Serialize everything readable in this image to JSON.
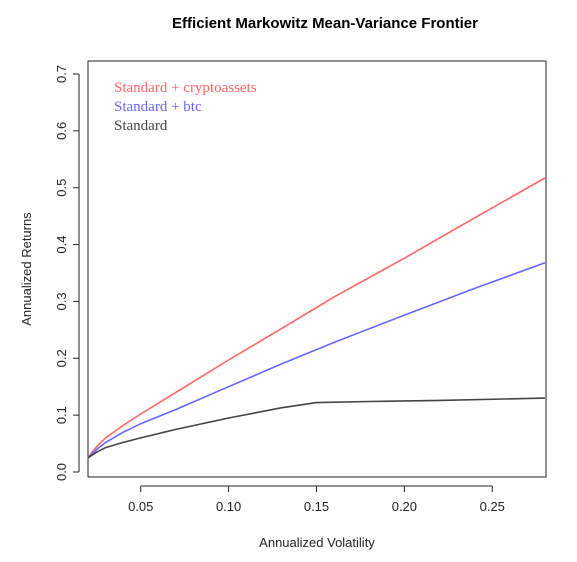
{
  "chart_data": {
    "type": "line",
    "title": "Efficient Markowitz Mean-Variance Frontier",
    "xlabel": "Annualized Volatility",
    "ylabel": "Annualized Returns",
    "xlim": [
      0.0,
      0.28
    ],
    "ylim": [
      0.0,
      0.7
    ],
    "x_ticks": [
      "0.05",
      "0.10",
      "0.15",
      "0.20",
      "0.25"
    ],
    "y_ticks": [
      "0.0",
      "0.1",
      "0.2",
      "0.3",
      "0.4",
      "0.5",
      "0.6",
      "0.7"
    ],
    "legend_position": "top-left",
    "series": [
      {
        "name": "Standard + cryptoassets",
        "color": "#ff6666",
        "points": [
          [
            0.02,
            0.025
          ],
          [
            0.025,
            0.045
          ],
          [
            0.03,
            0.06
          ],
          [
            0.04,
            0.082
          ],
          [
            0.05,
            0.102
          ],
          [
            0.07,
            0.14
          ],
          [
            0.1,
            0.197
          ],
          [
            0.13,
            0.252
          ],
          [
            0.16,
            0.308
          ],
          [
            0.2,
            0.376
          ],
          [
            0.24,
            0.447
          ],
          [
            0.28,
            0.517
          ]
        ]
      },
      {
        "name": "Standard + btc",
        "color": "#6666ff",
        "points": [
          [
            0.02,
            0.025
          ],
          [
            0.025,
            0.04
          ],
          [
            0.03,
            0.052
          ],
          [
            0.04,
            0.07
          ],
          [
            0.05,
            0.085
          ],
          [
            0.07,
            0.11
          ],
          [
            0.1,
            0.15
          ],
          [
            0.13,
            0.19
          ],
          [
            0.16,
            0.228
          ],
          [
            0.2,
            0.276
          ],
          [
            0.24,
            0.323
          ],
          [
            0.28,
            0.368
          ]
        ]
      },
      {
        "name": "Standard",
        "color": "#444444",
        "points": [
          [
            0.02,
            0.025
          ],
          [
            0.025,
            0.035
          ],
          [
            0.03,
            0.043
          ],
          [
            0.04,
            0.052
          ],
          [
            0.05,
            0.06
          ],
          [
            0.07,
            0.075
          ],
          [
            0.1,
            0.095
          ],
          [
            0.13,
            0.113
          ],
          [
            0.15,
            0.122
          ],
          [
            0.18,
            0.124
          ],
          [
            0.22,
            0.126
          ],
          [
            0.28,
            0.13
          ]
        ]
      }
    ]
  }
}
